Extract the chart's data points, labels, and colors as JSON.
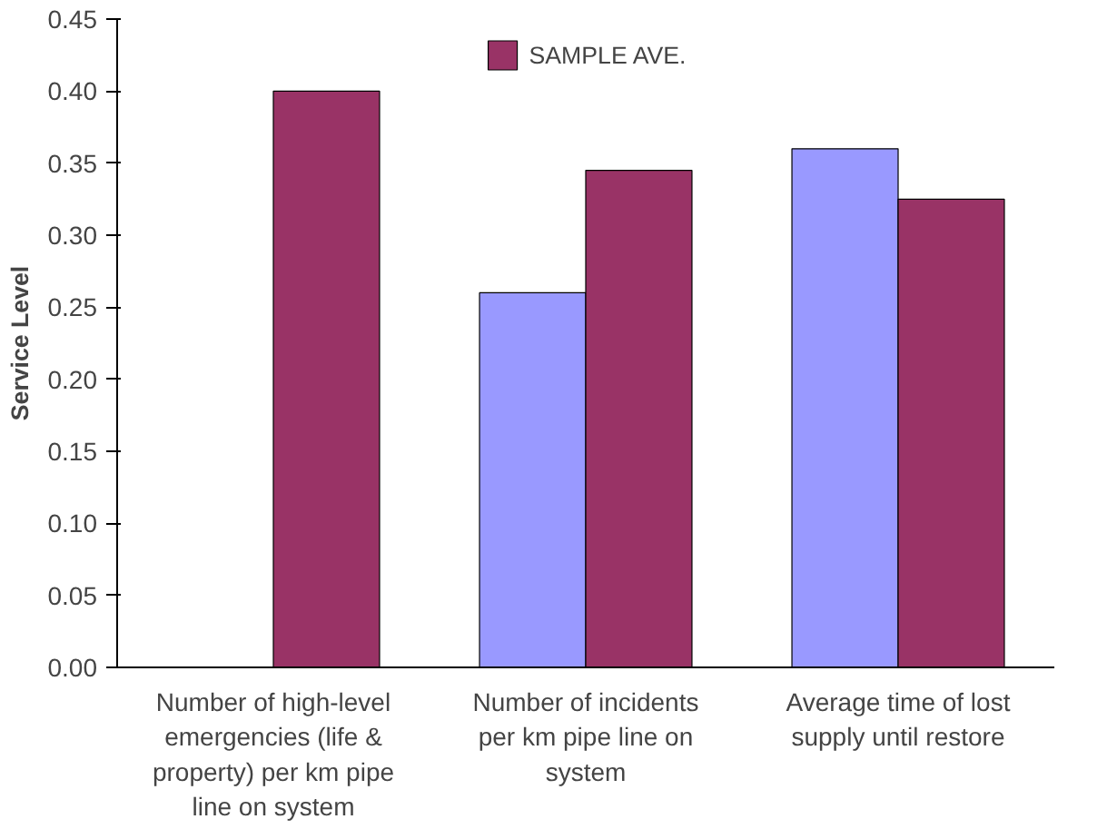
{
  "chart_data": {
    "type": "bar",
    "ylabel": "Service Level",
    "categories": [
      "Number of high-level emergencies (life & property) per km pipe line on system",
      "Number of incidents per km pipe line on system",
      "Average time of lost supply until restore"
    ],
    "series": [
      {
        "color": "#9999ff",
        "values": [
          null,
          0.26,
          0.36
        ]
      },
      {
        "name": "SAMPLE AVE.",
        "color": "#993366",
        "values": [
          0.4,
          0.345,
          0.325
        ]
      }
    ],
    "ylim": [
      0,
      0.45
    ],
    "yticks": [
      {
        "value": 0,
        "label": "0.00"
      },
      0.05,
      {
        "value": 0.1,
        "label": "0.10"
      },
      0.15,
      {
        "value": 0.2,
        "label": "0.20"
      },
      0.25,
      {
        "value": 0.3,
        "label": "0.30"
      },
      0.35,
      {
        "value": 0.4,
        "label": "0.40"
      },
      0.45
    ],
    "grid": false,
    "legend": "top"
  }
}
